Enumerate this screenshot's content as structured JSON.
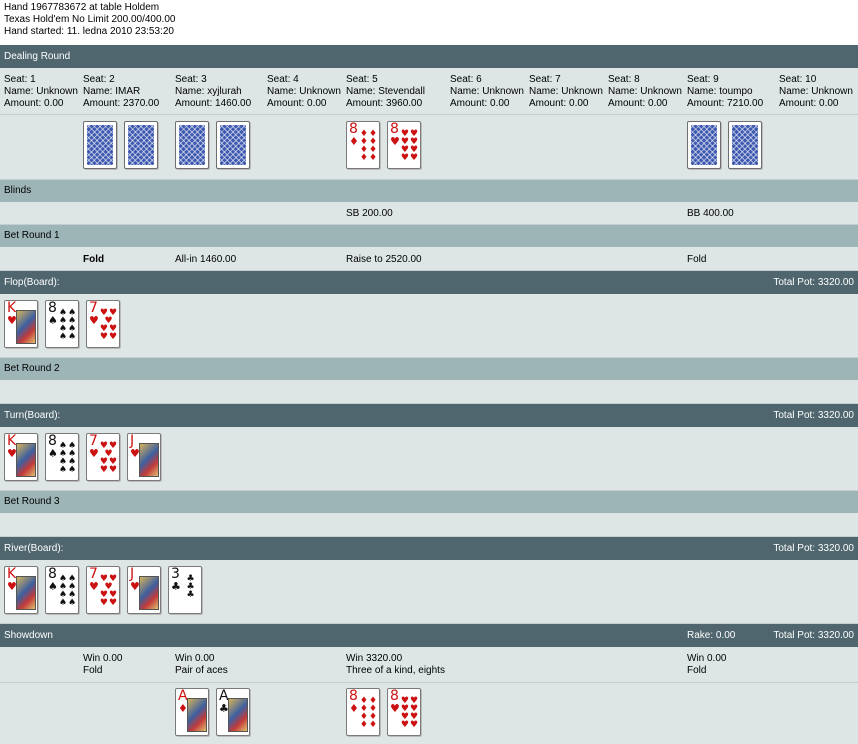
{
  "header": {
    "line1": "Hand 1967783672 at table Holdem",
    "line2": "Texas Hold'em No Limit 200.00/400.00",
    "line3": "Hand started: 11. ledna 2010 23:53:20"
  },
  "dealing": {
    "title": "Dealing Round",
    "seats": [
      {
        "seat": "Seat: 1",
        "name": "Name: Unknown",
        "amount": "Amount: 0.00"
      },
      {
        "seat": "Seat: 2",
        "name": "Name: IMAR",
        "amount": "Amount: 2370.00"
      },
      {
        "seat": "Seat: 3",
        "name": "Name: xyjlurah",
        "amount": "Amount: 1460.00"
      },
      {
        "seat": "Seat: 4",
        "name": "Name: Unknown",
        "amount": "Amount: 0.00"
      },
      {
        "seat": "Seat: 5",
        "name": "Name: Stevendall",
        "amount": "Amount: 3960.00"
      },
      {
        "seat": "Seat: 6",
        "name": "Name: Unknown",
        "amount": "Amount: 0.00"
      },
      {
        "seat": "Seat: 7",
        "name": "Name: Unknown",
        "amount": "Amount: 0.00"
      },
      {
        "seat": "Seat: 8",
        "name": "Name: Unknown",
        "amount": "Amount: 0.00"
      },
      {
        "seat": "Seat: 9",
        "name": "Name: toumpo",
        "amount": "Amount: 7210.00"
      },
      {
        "seat": "Seat: 10",
        "name": "Name: Unknown",
        "amount": "Amount: 0.00"
      }
    ]
  },
  "blinds": {
    "title": "Blinds",
    "sb": "SB 200.00",
    "bb": "BB 400.00"
  },
  "bet1": {
    "title": "Bet Round 1",
    "seat2": "Fold",
    "seat3": "All-in 1460.00",
    "seat5": "Raise to 2520.00",
    "seat9": "Fold"
  },
  "flop": {
    "title": "Flop(Board):",
    "pot": "Total Pot: 3320.00"
  },
  "bet2": {
    "title": "Bet Round 2"
  },
  "turn": {
    "title": "Turn(Board):",
    "pot": "Total Pot: 3320.00"
  },
  "bet3": {
    "title": "Bet Round 3"
  },
  "river": {
    "title": "River(Board):",
    "pot": "Total Pot: 3320.00"
  },
  "showdown": {
    "title": "Showdown",
    "rake": "Rake: 0.00",
    "pot": "Total Pot: 3320.00",
    "seat2": {
      "win": "Win 0.00",
      "desc": "Fold"
    },
    "seat3": {
      "win": "Win 0.00",
      "desc": "Pair of aces"
    },
    "seat5": {
      "win": "Win 3320.00",
      "desc": "Three of a kind, eights"
    },
    "seat9": {
      "win": "Win 0.00",
      "desc": "Fold"
    }
  },
  "cards": {
    "seat5_hole": [
      {
        "rank": "8",
        "suit": "♦"
      },
      {
        "rank": "8",
        "suit": "♥"
      }
    ],
    "flop": [
      {
        "rank": "K",
        "suit": "♥"
      },
      {
        "rank": "8",
        "suit": "♠"
      },
      {
        "rank": "7",
        "suit": "♥"
      }
    ],
    "turn": [
      {
        "rank": "K",
        "suit": "♥"
      },
      {
        "rank": "8",
        "suit": "♠"
      },
      {
        "rank": "7",
        "suit": "♥"
      },
      {
        "rank": "J",
        "suit": "♥"
      }
    ],
    "river": [
      {
        "rank": "K",
        "suit": "♥"
      },
      {
        "rank": "8",
        "suit": "♠"
      },
      {
        "rank": "7",
        "suit": "♥"
      },
      {
        "rank": "J",
        "suit": "♥"
      },
      {
        "rank": "3",
        "suit": "♣"
      }
    ],
    "showdown_seat3": [
      {
        "rank": "A",
        "suit": "♦"
      },
      {
        "rank": "A",
        "suit": "♣"
      }
    ],
    "showdown_seat5": [
      {
        "rank": "8",
        "suit": "♦"
      },
      {
        "rank": "8",
        "suit": "♥"
      }
    ]
  },
  "colors": {
    "dark_bar": "#4f666e",
    "light_bar": "#9eb5b8",
    "row_bg": "#dde5e5",
    "red_suit": "#cc1111"
  }
}
